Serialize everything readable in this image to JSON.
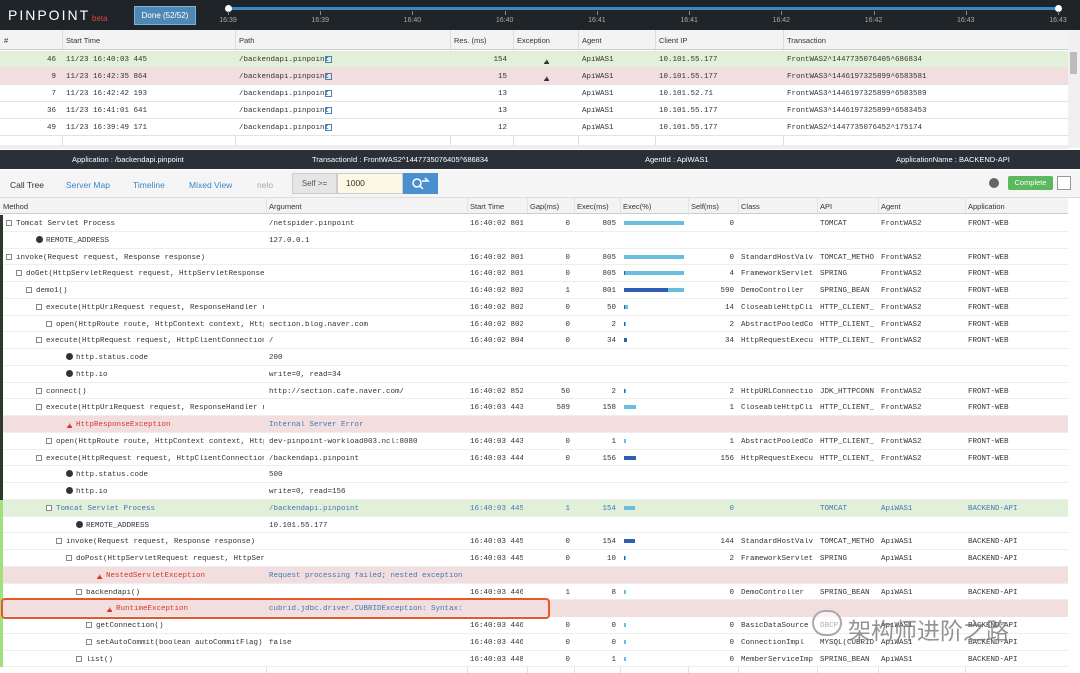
{
  "header": {
    "logo": "PINPOINT",
    "beta": "beta",
    "done_button": "Done (52/52)",
    "timeline_ticks": [
      "16:39",
      "16:39",
      "16:40",
      "16:40",
      "16:41",
      "16:41",
      "16:42",
      "16:42",
      "16:43",
      "16:43"
    ]
  },
  "transactions": {
    "columns": [
      "#",
      "Start Time",
      "Path",
      "Res. (ms)",
      "Exception",
      "Agent",
      "Client IP",
      "Transaction"
    ],
    "rows": [
      {
        "no": 46,
        "start_time": "11/23 16:40:03 445",
        "path": "/backendapi.pinpoint",
        "res": 154,
        "exception": true,
        "agent": "ApiWAS1",
        "client_ip": "10.101.55.177",
        "transaction": "FrontWAS2^1447735076405^686834",
        "color": "#e2f0d9"
      },
      {
        "no": 9,
        "start_time": "11/23 16:42:35 864",
        "path": "/backendapi.pinpoint",
        "res": 15,
        "exception": true,
        "agent": "ApiWAS1",
        "client_ip": "10.101.55.177",
        "transaction": "FrontWAS3^1446197325899^6583581",
        "color": "#f2dede"
      },
      {
        "no": 7,
        "start_time": "11/23 16:42:42 193",
        "path": "/backendapi.pinpoint",
        "res": 13,
        "agent": "ApiWAS1",
        "client_ip": "10.101.52.71",
        "transaction": "FrontWAS3^1446197325899^6583589"
      },
      {
        "no": 36,
        "start_time": "11/23 16:41:01 641",
        "path": "/backendapi.pinpoint",
        "res": 13,
        "agent": "ApiWAS1",
        "client_ip": "10.101.55.177",
        "transaction": "FrontWAS3^1446197325899^6583453"
      },
      {
        "no": 49,
        "start_time": "11/23 16:39:49 171",
        "path": "/backendapi.pinpoint",
        "res": 12,
        "agent": "ApiWAS1",
        "client_ip": "10.101.55.177",
        "transaction": "FrontWAS2^1447735076452^175174"
      }
    ]
  },
  "info_bar": [
    "Application : /backendapi.pinpoint",
    "TransactionId : FrontWAS2^1447735076405^686834",
    "AgentId : ApiWAS1",
    "ApplicationName : BACKEND-API"
  ],
  "tabs": [
    "Call Tree",
    "Server Map",
    "Timeline",
    "Mixed View",
    "nelo"
  ],
  "filter": {
    "label": "Self >=",
    "value": "1000"
  },
  "status_button": "Complete",
  "call_tree": {
    "columns": [
      "Method",
      "Argument",
      "Start Time",
      "Gap(ms)",
      "Exec(ms)",
      "Exec(%)",
      "Self(ms)",
      "Class",
      "API",
      "Agent",
      "Application"
    ],
    "rows": [
      {
        "method": "Tomcat Servlet Process",
        "argument": "/netspider.pinpoint",
        "start_time": "16:40:02 801",
        "gap": 0,
        "exec": 805,
        "self": 0,
        "api": "TOMCAT",
        "agent": "FrontWAS2",
        "application": "FRONT-WEB"
      },
      {
        "attribute": "REMOTE_ADDRESS",
        "argument": "127.0.0.1"
      },
      {
        "method": "invoke(Request request, Response response)",
        "start_time": "16:40:02 801",
        "gap": 0,
        "exec": 805,
        "self": 0,
        "class": "StandardHostValve",
        "api": "TOMCAT_METHOD",
        "agent": "FrontWAS2",
        "application": "FRONT-WEB"
      },
      {
        "method": "doGet(HttpServletRequest request, HttpServletResponse res",
        "start_time": "16:40:02 801",
        "gap": 0,
        "exec": 805,
        "self": 4,
        "class": "FrameworkServlet",
        "api": "SPRING",
        "agent": "FrontWAS2",
        "application": "FRONT-WEB"
      },
      {
        "method": "demo1()",
        "start_time": "16:40:02 802",
        "gap": 1,
        "exec": 801,
        "self": 590,
        "class": "DemoController",
        "api": "SPRING_BEAN",
        "agent": "FrontWAS2",
        "application": "FRONT-WEB"
      },
      {
        "method": "execute(HttpUriRequest request, ResponseHandler resp",
        "start_time": "16:40:02 802",
        "gap": 0,
        "exec": 50,
        "self": 14,
        "class": "CloseableHttpClie…",
        "api": "HTTP_CLIENT_4",
        "agent": "FrontWAS2",
        "application": "FRONT-WEB"
      },
      {
        "method": "open(HttpRoute route, HttpContext context, HttpPa",
        "argument": "section.blog.naver.com",
        "start_time": "16:40:02 802",
        "gap": 0,
        "exec": 2,
        "self": 2,
        "class": "AbstractPooledCon…",
        "api": "HTTP_CLIENT_4",
        "agent": "FrontWAS2",
        "application": "FRONT-WEB"
      },
      {
        "method": "execute(HttpRequest request, HttpClientConnection",
        "argument": "/",
        "start_time": "16:40:02 804",
        "gap": 0,
        "exec": 34,
        "self": 34,
        "class": "HttpRequestExecut…",
        "api": "HTTP_CLIENT_4",
        "agent": "FrontWAS2",
        "application": "FRONT-WEB"
      },
      {
        "attribute": "http.status.code",
        "argument": "200"
      },
      {
        "attribute": "http.io",
        "argument": "write=0, read=34"
      },
      {
        "method": "connect()",
        "argument": "http://section.cafe.naver.com/",
        "start_time": "16:40:02 852",
        "gap": 50,
        "exec": 2,
        "self": 2,
        "class": "HttpURLConnection",
        "api": "JDK_HTTPCONN…",
        "agent": "FrontWAS2",
        "application": "FRONT-WEB"
      },
      {
        "method": "execute(HttpUriRequest request, ResponseHandler resp",
        "start_time": "16:40:03 443",
        "gap": 589,
        "exec": 158,
        "self": 1,
        "class": "CloseableHttpClie…",
        "api": "HTTP_CLIENT_4",
        "agent": "FrontWAS2",
        "application": "FRONT-WEB"
      },
      {
        "exception": "HttpResponseException",
        "argument": "Internal Server Error",
        "color": "#f2dede"
      },
      {
        "method": "open(HttpRoute route, HttpContext context, HttpPa",
        "argument": "dev-pinpoint-workload003.ncl:8080",
        "start_time": "16:40:03 443",
        "gap": 0,
        "exec": 1,
        "self": 1,
        "class": "AbstractPooledCon…",
        "api": "HTTP_CLIENT_4",
        "agent": "FrontWAS2",
        "application": "FRONT-WEB"
      },
      {
        "method": "execute(HttpRequest request, HttpClientConnection",
        "argument": "/backendapi.pinpoint",
        "start_time": "16:40:03 444",
        "gap": 0,
        "exec": 156,
        "self": 156,
        "class": "HttpRequestExecut…",
        "api": "HTTP_CLIENT_4",
        "agent": "FrontWAS2",
        "application": "FRONT-WEB"
      },
      {
        "attribute": "http.status.code",
        "argument": "500"
      },
      {
        "attribute": "http.io",
        "argument": "write=0, read=156"
      },
      {
        "method": "Tomcat Servlet Process",
        "argument": "/backendapi.pinpoint",
        "start_time": "16:40:03 445",
        "gap": 1,
        "exec": 154,
        "self": 0,
        "api": "TOMCAT",
        "agent": "ApiWAS1",
        "application": "BACKEND-API",
        "color": "#e2f0d9"
      },
      {
        "attribute": "REMOTE_ADDRESS",
        "argument": "10.101.55.177"
      },
      {
        "method": "invoke(Request request, Response response)",
        "start_time": "16:40:03 445",
        "gap": 0,
        "exec": 154,
        "self": 144,
        "class": "StandardHostValve",
        "api": "TOMCAT_METHOD",
        "agent": "ApiWAS1",
        "application": "BACKEND-API"
      },
      {
        "method": "doPost(HttpServletRequest request, HttpSer",
        "start_time": "16:40:03 445",
        "gap": 0,
        "exec": 10,
        "self": 2,
        "class": "FrameworkServlet",
        "api": "SPRING",
        "agent": "ApiWAS1",
        "application": "BACKEND-API"
      },
      {
        "exception": "NestedServletException",
        "argument": "Request processing failed; nested exception is ja",
        "color": "#f2dede"
      },
      {
        "method": "backendapi()",
        "start_time": "16:40:03 446",
        "gap": 1,
        "exec": 8,
        "self": 0,
        "class": "DemoController",
        "api": "SPRING_BEAN",
        "agent": "ApiWAS1",
        "application": "BACKEND-API"
      },
      {
        "exception": "RuntimeException",
        "argument": "cubrid.jdbc.driver.CUBRIDException: Syntax: Unkno",
        "color": "#f2dede",
        "outline": "#e8572a"
      },
      {
        "method": "getConnection()",
        "start_time": "16:40:03 446",
        "gap": 0,
        "exec": 0,
        "self": 0,
        "class": "BasicDataSource",
        "api": "DBCP",
        "agent": "ApiWAS1",
        "application": "BACKEND-API"
      },
      {
        "method": "setAutoCommit(boolean autoCommitFlag)",
        "argument": "false",
        "start_time": "16:40:03 446",
        "gap": 0,
        "exec": 0,
        "self": 0,
        "class": "ConnectionImpl",
        "api": "MYSQL(CUBRID)",
        "agent": "ApiWAS1",
        "application": "BACKEND-API"
      },
      {
        "method": "list()",
        "start_time": "16:40:03 448",
        "gap": 0,
        "exec": 1,
        "self": 0,
        "class": "MemberServiceImpl",
        "api": "SPRING_BEAN",
        "agent": "ApiWAS1",
        "application": "BACKEND-API"
      }
    ]
  },
  "watermark": "架构师进阶之路"
}
